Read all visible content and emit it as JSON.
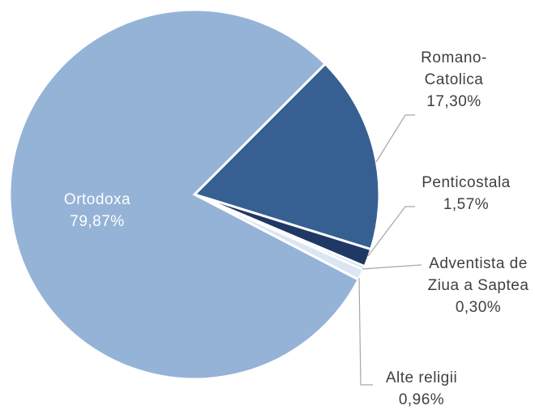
{
  "chart_data": {
    "type": "pie",
    "categories": [
      "Romano-Catolica",
      "Penticostala",
      "Adventista de Ziua a Saptea",
      "Alte religii",
      "Ortodoxa"
    ],
    "values": [
      17.3,
      1.57,
      0.3,
      0.96,
      79.87
    ],
    "value_labels": [
      "17,30%",
      "1,57%",
      "0,30%",
      "0,96%",
      "79,87%"
    ],
    "colors": [
      "#366092",
      "#1f3864",
      "#b8cce4",
      "#dce6f2",
      "#95b3d7"
    ]
  }
}
